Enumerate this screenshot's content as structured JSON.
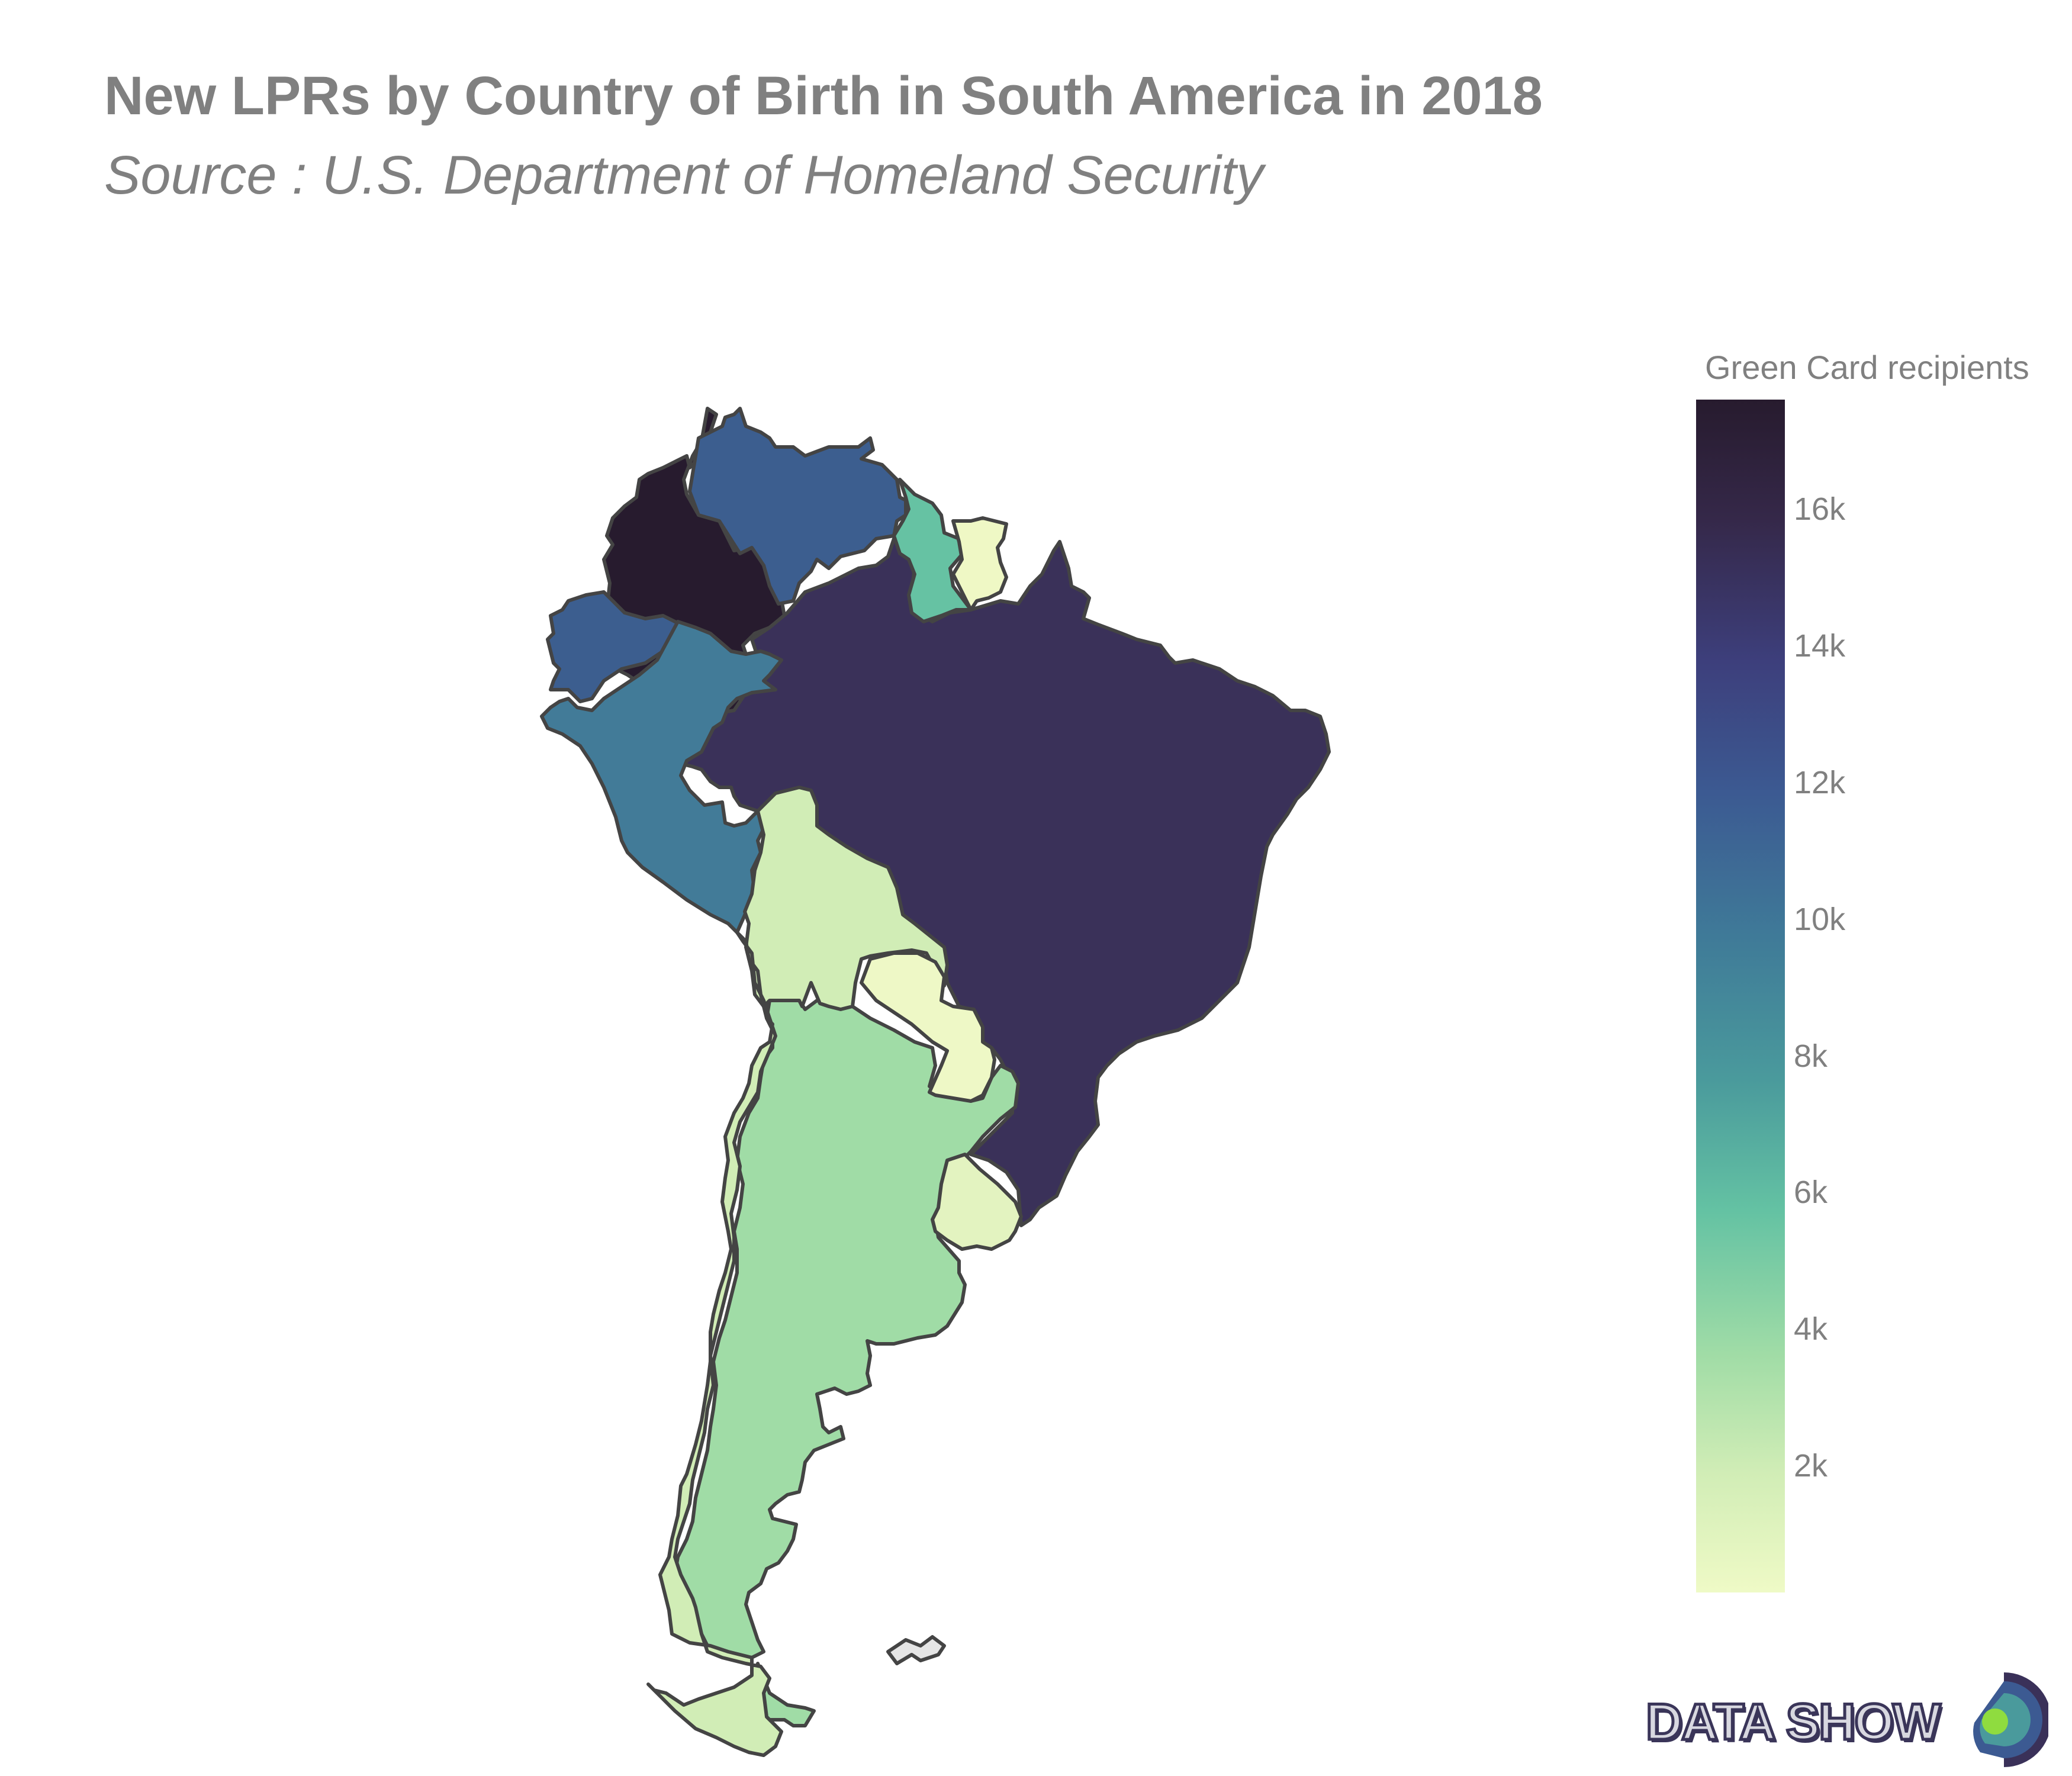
{
  "header": {
    "title": "New LPRs by Country of Birth in South America in 2018",
    "subtitle": "Source : U.S. Department of Homeland Security"
  },
  "colorbar": {
    "title": "Green Card recipients",
    "ticks": [
      "16k",
      "14k",
      "12k",
      "10k",
      "8k",
      "6k",
      "4k",
      "2k"
    ]
  },
  "logo": {
    "text": "DATA SHOW"
  },
  "chart_data": {
    "type": "choropleth",
    "title": "New LPRs by Country of Birth in South America in 2018",
    "subtitle": "Source : U.S. Department of Homeland Security",
    "colorbar_title": "Green Card recipients",
    "colorscale": [
      "#effac6",
      "#d1edb6",
      "#a0dca6",
      "#64c2a3",
      "#4a9a9c",
      "#3f7a98",
      "#3c5a92",
      "#3d3f7c",
      "#352849",
      "#271b2e"
    ],
    "zrange": [
      150,
      17600
    ],
    "tick_values": [
      16000,
      14000,
      12000,
      10000,
      8000,
      6000,
      4000,
      2000
    ],
    "no_data_color": "#e5e5e5",
    "border_color": "#444444",
    "countries": [
      {
        "name": "Colombia",
        "value": 17500,
        "color": "#271b2e"
      },
      {
        "name": "Brazil",
        "value": 15400,
        "color": "#3a3159"
      },
      {
        "name": "Venezuela",
        "value": 11800,
        "color": "#3c5e8f"
      },
      {
        "name": "Ecuador",
        "value": 11800,
        "color": "#3c5e8f"
      },
      {
        "name": "Peru",
        "value": 10000,
        "color": "#427b98"
      },
      {
        "name": "Guyana",
        "value": 5500,
        "color": "#66c2a3"
      },
      {
        "name": "Argentina",
        "value": 3300,
        "color": "#a0dca6"
      },
      {
        "name": "Bolivia",
        "value": 1800,
        "color": "#d1edb6"
      },
      {
        "name": "Chile",
        "value": 1800,
        "color": "#d1edb6"
      },
      {
        "name": "Uruguay",
        "value": 1000,
        "color": "#e3f3c0"
      },
      {
        "name": "Suriname",
        "value": 300,
        "color": "#eff8c5"
      },
      {
        "name": "Paraguay",
        "value": 300,
        "color": "#eef8c6"
      },
      {
        "name": "Falkland Islands",
        "value": null,
        "color": "#e5e5e5"
      }
    ]
  }
}
